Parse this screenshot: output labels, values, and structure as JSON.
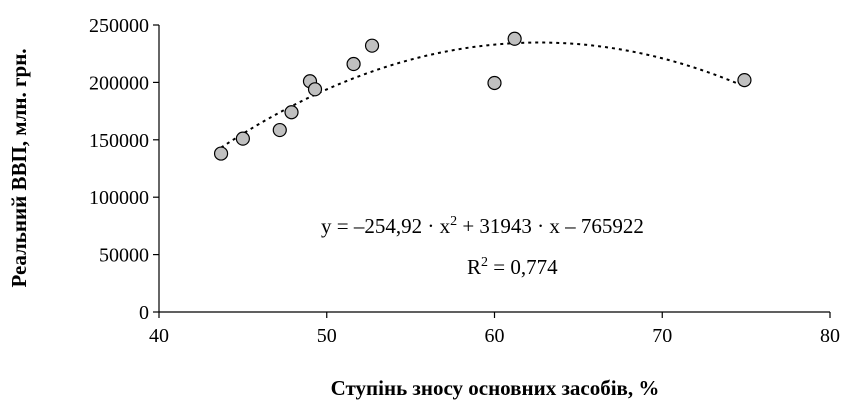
{
  "chart_data": {
    "type": "scatter",
    "xlabel": "Ступінь зносу основних засобів, %",
    "ylabel": "Реальний ВВП, млн. грн.",
    "xlim": [
      40,
      80
    ],
    "ylim": [
      0,
      250000
    ],
    "x_ticks": [
      "40",
      "50",
      "60",
      "70",
      "80"
    ],
    "y_ticks": [
      "0",
      "50000",
      "100000",
      "150000",
      "200000",
      "250000"
    ],
    "grid": false,
    "legend": "none",
    "points": [
      {
        "x": 43.7,
        "y": 138000
      },
      {
        "x": 45.0,
        "y": 151000
      },
      {
        "x": 47.2,
        "y": 158500
      },
      {
        "x": 47.9,
        "y": 174000
      },
      {
        "x": 49.0,
        "y": 201000
      },
      {
        "x": 49.3,
        "y": 194000
      },
      {
        "x": 51.6,
        "y": 216000
      },
      {
        "x": 52.7,
        "y": 232000
      },
      {
        "x": 60.0,
        "y": 199500
      },
      {
        "x": 61.2,
        "y": 238000
      },
      {
        "x": 74.9,
        "y": 202000
      }
    ],
    "trendline": {
      "type": "polynomial-2",
      "style": "dotted",
      "coefficients": {
        "a": -254.92,
        "b": 31943,
        "c": -765922
      },
      "x_range": [
        43.7,
        74.9
      ]
    },
    "annotation": {
      "equation_line1_prefix": "y = –254,92 · x",
      "equation_line1_suffix": " + 31943 · x – 765922",
      "equation_line2_prefix": "R",
      "equation_line2_suffix": " = 0,774",
      "superscript": "2"
    },
    "colors": {
      "marker_fill": "#c0c0c0",
      "marker_stroke": "#000000",
      "axis": "#000000",
      "trendline": "#000000"
    }
  }
}
